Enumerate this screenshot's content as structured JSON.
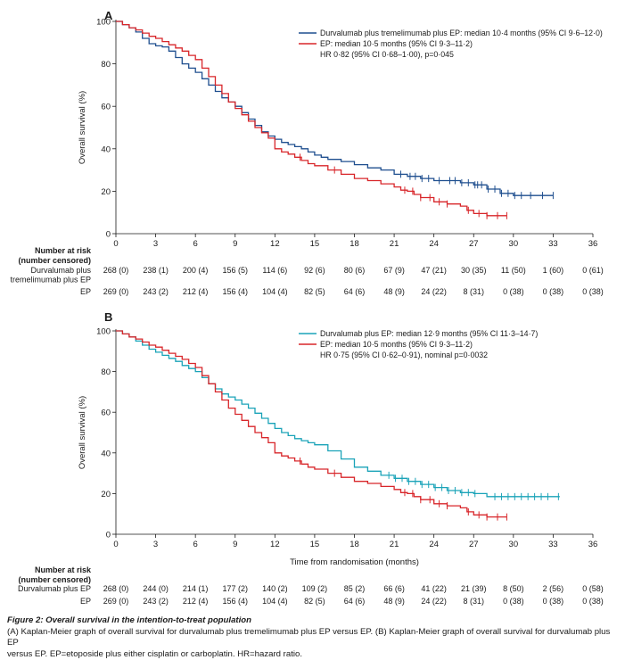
{
  "chart_data": [
    {
      "type": "line",
      "panel_label": "A",
      "ylabel": "Overall survival (%)",
      "xlabel": "",
      "xlim": [
        0,
        36
      ],
      "ylim": [
        0,
        100
      ],
      "x_ticks": [
        "0",
        "3",
        "6",
        "9",
        "12",
        "15",
        "18",
        "21",
        "24",
        "27",
        "30",
        "33",
        "36"
      ],
      "y_ticks": [
        "0",
        "20",
        "40",
        "60",
        "80",
        "100"
      ],
      "legend_position": "top-right",
      "legend_note": "HR 0·82 (95% CI 0·68–1·00), p=0·045",
      "series": [
        {
          "name": "Durvalumab plus tremelimumab plus EP: median 10·4 months (95% CI 9·6–12·0)",
          "color": "#1f4f8f",
          "x": [
            0,
            0.5,
            1,
            1.5,
            2,
            2.5,
            3,
            3.5,
            4,
            4.5,
            5,
            5.5,
            6,
            6.5,
            7,
            7.5,
            8,
            8.5,
            9,
            9.5,
            10,
            10.5,
            11,
            11.5,
            12,
            12.5,
            13,
            13.5,
            14,
            14.5,
            15,
            15.5,
            16,
            17,
            18,
            19,
            20,
            21,
            22,
            23,
            24,
            25,
            26,
            27,
            28,
            29,
            30,
            31,
            32,
            33
          ],
          "y": [
            100,
            98.5,
            97,
            95,
            92,
            89.5,
            88.5,
            88,
            86,
            83,
            80,
            78,
            76,
            73,
            70,
            67,
            64,
            62,
            60,
            57,
            54,
            51,
            48,
            46,
            44.5,
            43,
            42,
            41,
            40,
            38.5,
            37,
            36,
            35,
            34,
            32.5,
            31,
            30,
            28,
            27,
            26,
            25,
            25,
            24,
            23,
            21,
            19,
            18,
            18,
            18,
            18
          ],
          "censor_x": [
            21.5,
            22.2,
            22.6,
            23.1,
            23.6,
            24.4,
            25.2,
            25.6,
            26.1,
            26.6,
            27.1,
            27.3,
            27.6,
            28.1,
            28.6,
            29.1,
            29.6,
            30.1,
            30.6,
            31.3,
            32.2,
            33.0
          ]
        },
        {
          "name": "EP: median 10·5 months (95% CI 9·3–11·2)",
          "color": "#d8262a",
          "x": [
            0,
            0.5,
            1,
            1.5,
            2,
            2.5,
            3,
            3.5,
            4,
            4.5,
            5,
            5.5,
            6,
            6.5,
            7,
            7.5,
            8,
            8.5,
            9,
            9.5,
            10,
            10.5,
            11,
            11.5,
            12,
            12.5,
            13,
            13.5,
            14,
            14.5,
            15,
            16,
            17,
            18,
            19,
            20,
            21,
            21.5,
            22,
            22.5,
            23,
            24,
            25,
            26,
            26.5,
            27,
            28,
            29.5
          ],
          "y": [
            100,
            98.5,
            97,
            96,
            94.5,
            93,
            92,
            90.5,
            89,
            87.5,
            86,
            84,
            82,
            78,
            74,
            70,
            66,
            62,
            59,
            56,
            53,
            50,
            47.5,
            45,
            40,
            38.5,
            37.5,
            36,
            34.5,
            33,
            32,
            30,
            28,
            26,
            25,
            23.5,
            22,
            20.5,
            20,
            18.5,
            17,
            15,
            14,
            13,
            11,
            9.5,
            8.5,
            8.5
          ],
          "censor_x": [
            13.9,
            16.5,
            21.8,
            22.4,
            23.0,
            23.7,
            24.4,
            25.0,
            26.6,
            27.4,
            28.0,
            28.8,
            29.5
          ]
        }
      ],
      "risk_table": {
        "header_lines": [
          "Number at risk",
          "(number censored)"
        ],
        "rows": [
          {
            "label_lines": [
              "Durvalumab plus",
              "tremelimumab plus EP"
            ],
            "values": [
              "268 (0)",
              "238 (1)",
              "200 (4)",
              "156 (5)",
              "114 (6)",
              "92 (6)",
              "80 (6)",
              "67 (9)",
              "47 (21)",
              "30 (35)",
              "11 (50)",
              "1 (60)",
              "0 (61)"
            ]
          },
          {
            "label_lines": [
              "EP"
            ],
            "values": [
              "269 (0)",
              "243 (2)",
              "212 (4)",
              "156 (4)",
              "104 (4)",
              "82 (5)",
              "64 (6)",
              "48 (9)",
              "24 (22)",
              "8 (31)",
              "0 (38)",
              "0 (38)",
              "0 (38)"
            ]
          }
        ]
      }
    },
    {
      "type": "line",
      "panel_label": "B",
      "ylabel": "Overall survival (%)",
      "xlabel": "Time from randomisation (months)",
      "xlim": [
        0,
        36
      ],
      "ylim": [
        0,
        100
      ],
      "x_ticks": [
        "0",
        "3",
        "6",
        "9",
        "12",
        "15",
        "18",
        "21",
        "24",
        "27",
        "30",
        "33",
        "36"
      ],
      "y_ticks": [
        "0",
        "20",
        "40",
        "60",
        "80",
        "100"
      ],
      "legend_position": "top-right",
      "legend_note": "HR 0·75 (95% CI 0·62–0·91), nominal p=0·0032",
      "series": [
        {
          "name": "Durvalumab plus EP: median 12·9 months (95% CI 11·3–14·7)",
          "color": "#1aa3b8",
          "x": [
            0,
            0.5,
            1,
            1.5,
            2,
            2.5,
            3,
            3.5,
            4,
            4.5,
            5,
            5.5,
            6,
            6.5,
            7,
            7.5,
            8,
            8.5,
            9,
            9.5,
            10,
            10.5,
            11,
            11.5,
            12,
            12.5,
            13,
            13.5,
            14,
            14.5,
            15,
            16,
            17,
            18,
            19,
            20,
            21,
            22,
            23,
            24,
            25,
            26,
            27,
            28,
            30,
            31,
            33.5
          ],
          "y": [
            100,
            98.5,
            97,
            95,
            93,
            91,
            89.5,
            88,
            86.5,
            85,
            83,
            81.5,
            80,
            77,
            74,
            71.5,
            69,
            67.5,
            66,
            64,
            62,
            59.5,
            57,
            54.5,
            52,
            50,
            48.5,
            47,
            46,
            45,
            44,
            41,
            37,
            33,
            31,
            29,
            27.5,
            26,
            24.5,
            23,
            21.5,
            20.5,
            20,
            18.5,
            18.5,
            18.5,
            18.5
          ],
          "censor_x": [
            20.6,
            21.1,
            21.6,
            22.1,
            22.6,
            23.1,
            23.6,
            24.1,
            24.6,
            25.1,
            25.6,
            26.1,
            26.6,
            27.1,
            28.6,
            29.1,
            29.6,
            30.1,
            30.6,
            31.1,
            31.6,
            32.1,
            32.6,
            33.4
          ]
        },
        {
          "name": "EP: median 10·5 months (95% CI 9·3–11·2)",
          "color": "#d8262a",
          "x": [
            0,
            0.5,
            1,
            1.5,
            2,
            2.5,
            3,
            3.5,
            4,
            4.5,
            5,
            5.5,
            6,
            6.5,
            7,
            7.5,
            8,
            8.5,
            9,
            9.5,
            10,
            10.5,
            11,
            11.5,
            12,
            12.5,
            13,
            13.5,
            14,
            14.5,
            15,
            16,
            17,
            18,
            19,
            20,
            21,
            21.5,
            22,
            22.5,
            23,
            24,
            25,
            26,
            26.5,
            27,
            28,
            29.5
          ],
          "y": [
            100,
            98.5,
            97,
            96,
            94.5,
            93,
            92,
            90.5,
            89,
            87.5,
            86,
            84,
            82,
            78,
            74,
            70,
            66,
            62,
            59,
            56,
            53,
            50,
            47.5,
            45,
            40,
            38.5,
            37.5,
            36,
            34.5,
            33,
            32,
            30,
            28,
            26,
            25,
            23.5,
            22,
            20.5,
            20,
            18.5,
            17,
            15,
            14,
            13,
            11,
            9.5,
            8.5,
            8.5
          ],
          "censor_x": [
            13.9,
            16.5,
            21.8,
            22.4,
            23.0,
            23.7,
            24.4,
            25.0,
            26.6,
            27.4,
            28.0,
            28.8,
            29.5
          ]
        }
      ],
      "risk_table": {
        "header_lines": [
          "Number at risk",
          "(number censored)"
        ],
        "rows": [
          {
            "label_lines": [
              "Durvalumab plus EP"
            ],
            "values": [
              "268 (0)",
              "244 (0)",
              "214 (1)",
              "177 (2)",
              "140 (2)",
              "109 (2)",
              "85 (2)",
              "66 (6)",
              "41 (22)",
              "21 (39)",
              "8 (50)",
              "2 (56)",
              "0 (58)"
            ]
          },
          {
            "label_lines": [
              "EP"
            ],
            "values": [
              "269 (0)",
              "243 (2)",
              "212 (4)",
              "156 (4)",
              "104 (4)",
              "82 (5)",
              "64 (6)",
              "48 (9)",
              "24 (22)",
              "8 (31)",
              "0 (38)",
              "0 (38)",
              "0 (38)"
            ]
          }
        ]
      }
    }
  ],
  "caption": {
    "title": "Figure 2: Overall survival in the intention-to-treat population",
    "lines": [
      "(A) Kaplan-Meier graph of overall survival for durvalumab plus tremelimumab plus EP versus EP. (B) Kaplan-Meier graph of overall survival for durvalumab plus EP",
      "versus EP. EP=etoposide plus either cisplatin or carboplatin. HR=hazard ratio."
    ]
  }
}
